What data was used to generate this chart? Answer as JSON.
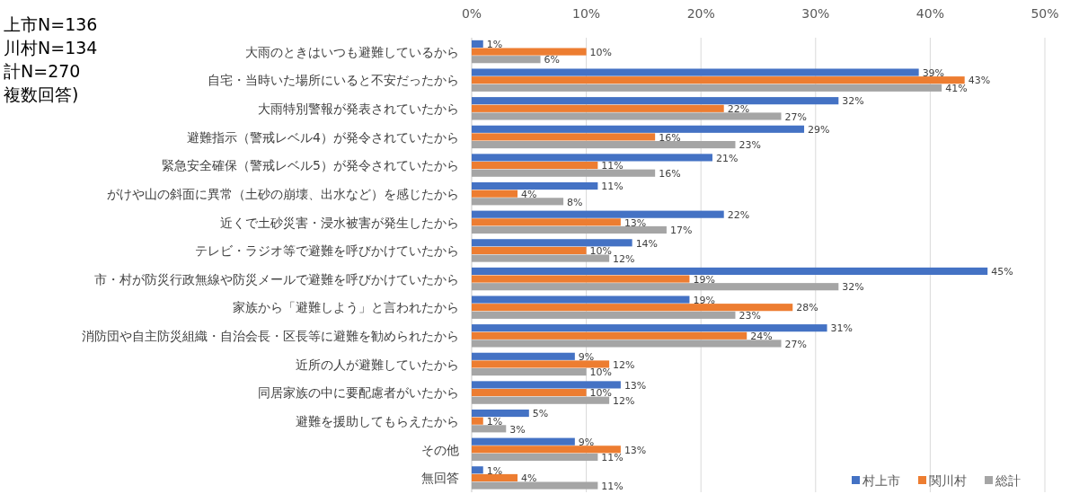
{
  "chart_data": {
    "type": "bar",
    "orientation": "horizontal",
    "annotations": [
      "上市N=136",
      "川村N=134",
      "計N=270",
      "複数回答)"
    ],
    "categories": [
      "大雨のときはいつも避難しているから",
      "自宅・当時いた場所にいると不安だったから",
      "大雨特別警報が発表されていたから",
      "避難指示（警戒レベル4）が発令されていたから",
      "緊急安全確保（警戒レベル5）が発令されていたから",
      "がけや山の斜面に異常（土砂の崩壊、出水など）を感じたから",
      "近くで土砂災害・浸水被害が発生したから",
      "テレビ・ラジオ等で避難を呼びかけていたから",
      "市・村が防災行政無線や防災メールで避難を呼びかけていたから",
      "家族から「避難しよう」と言われたから",
      "消防団や自主防災組織・自治会長・区長等に避難を勧められたから",
      "近所の人が避難していたから",
      "同居家族の中に要配慮者がいたから",
      "避難を援助してもらえたから",
      "その他",
      "無回答"
    ],
    "series": [
      {
        "name": "村上市",
        "color": "#4472c4",
        "values": [
          1,
          39,
          32,
          29,
          21,
          11,
          22,
          14,
          45,
          19,
          31,
          9,
          13,
          5,
          9,
          1
        ],
        "value_labels": [
          "1%",
          "39%",
          "32%",
          "29%",
          "21%",
          "11%",
          "22%",
          "14%",
          "45%",
          "19%",
          "31%",
          "9%",
          "13%",
          "5%",
          "9%",
          "1%"
        ]
      },
      {
        "name": "関川村",
        "color": "#ed7d31",
        "values": [
          10,
          43,
          22,
          16,
          11,
          4,
          13,
          10,
          19,
          28,
          24,
          12,
          10,
          1,
          13,
          4
        ],
        "value_labels": [
          "10%",
          "43%",
          "22%",
          "16%",
          "11%",
          "4%",
          "13%",
          "10%",
          "19%",
          "28%",
          "24%",
          "12%",
          "10%",
          "1%",
          "13%",
          "4%"
        ]
      },
      {
        "name": "総計",
        "color": "#a5a5a5",
        "values": [
          6,
          41,
          27,
          23,
          16,
          8,
          17,
          12,
          32,
          23,
          27,
          10,
          12,
          3,
          11,
          11
        ],
        "value_labels": [
          "6%",
          "41%",
          "27%",
          "23%",
          "16%",
          "8%",
          "17%",
          "12%",
          "32%",
          "23%",
          "27%",
          "10%",
          "12%",
          "3%",
          "11%",
          "11%"
        ]
      }
    ],
    "xlim": [
      0,
      50
    ],
    "xticks": [
      {
        "value": 0,
        "label": "0%"
      },
      {
        "value": 10,
        "label": "10%"
      },
      {
        "value": 20,
        "label": "20%"
      },
      {
        "value": 30,
        "label": "30%"
      },
      {
        "value": 40,
        "label": "40%"
      },
      {
        "value": 50,
        "label": "50%"
      }
    ],
    "grid": "x",
    "legend": "bottom right"
  }
}
